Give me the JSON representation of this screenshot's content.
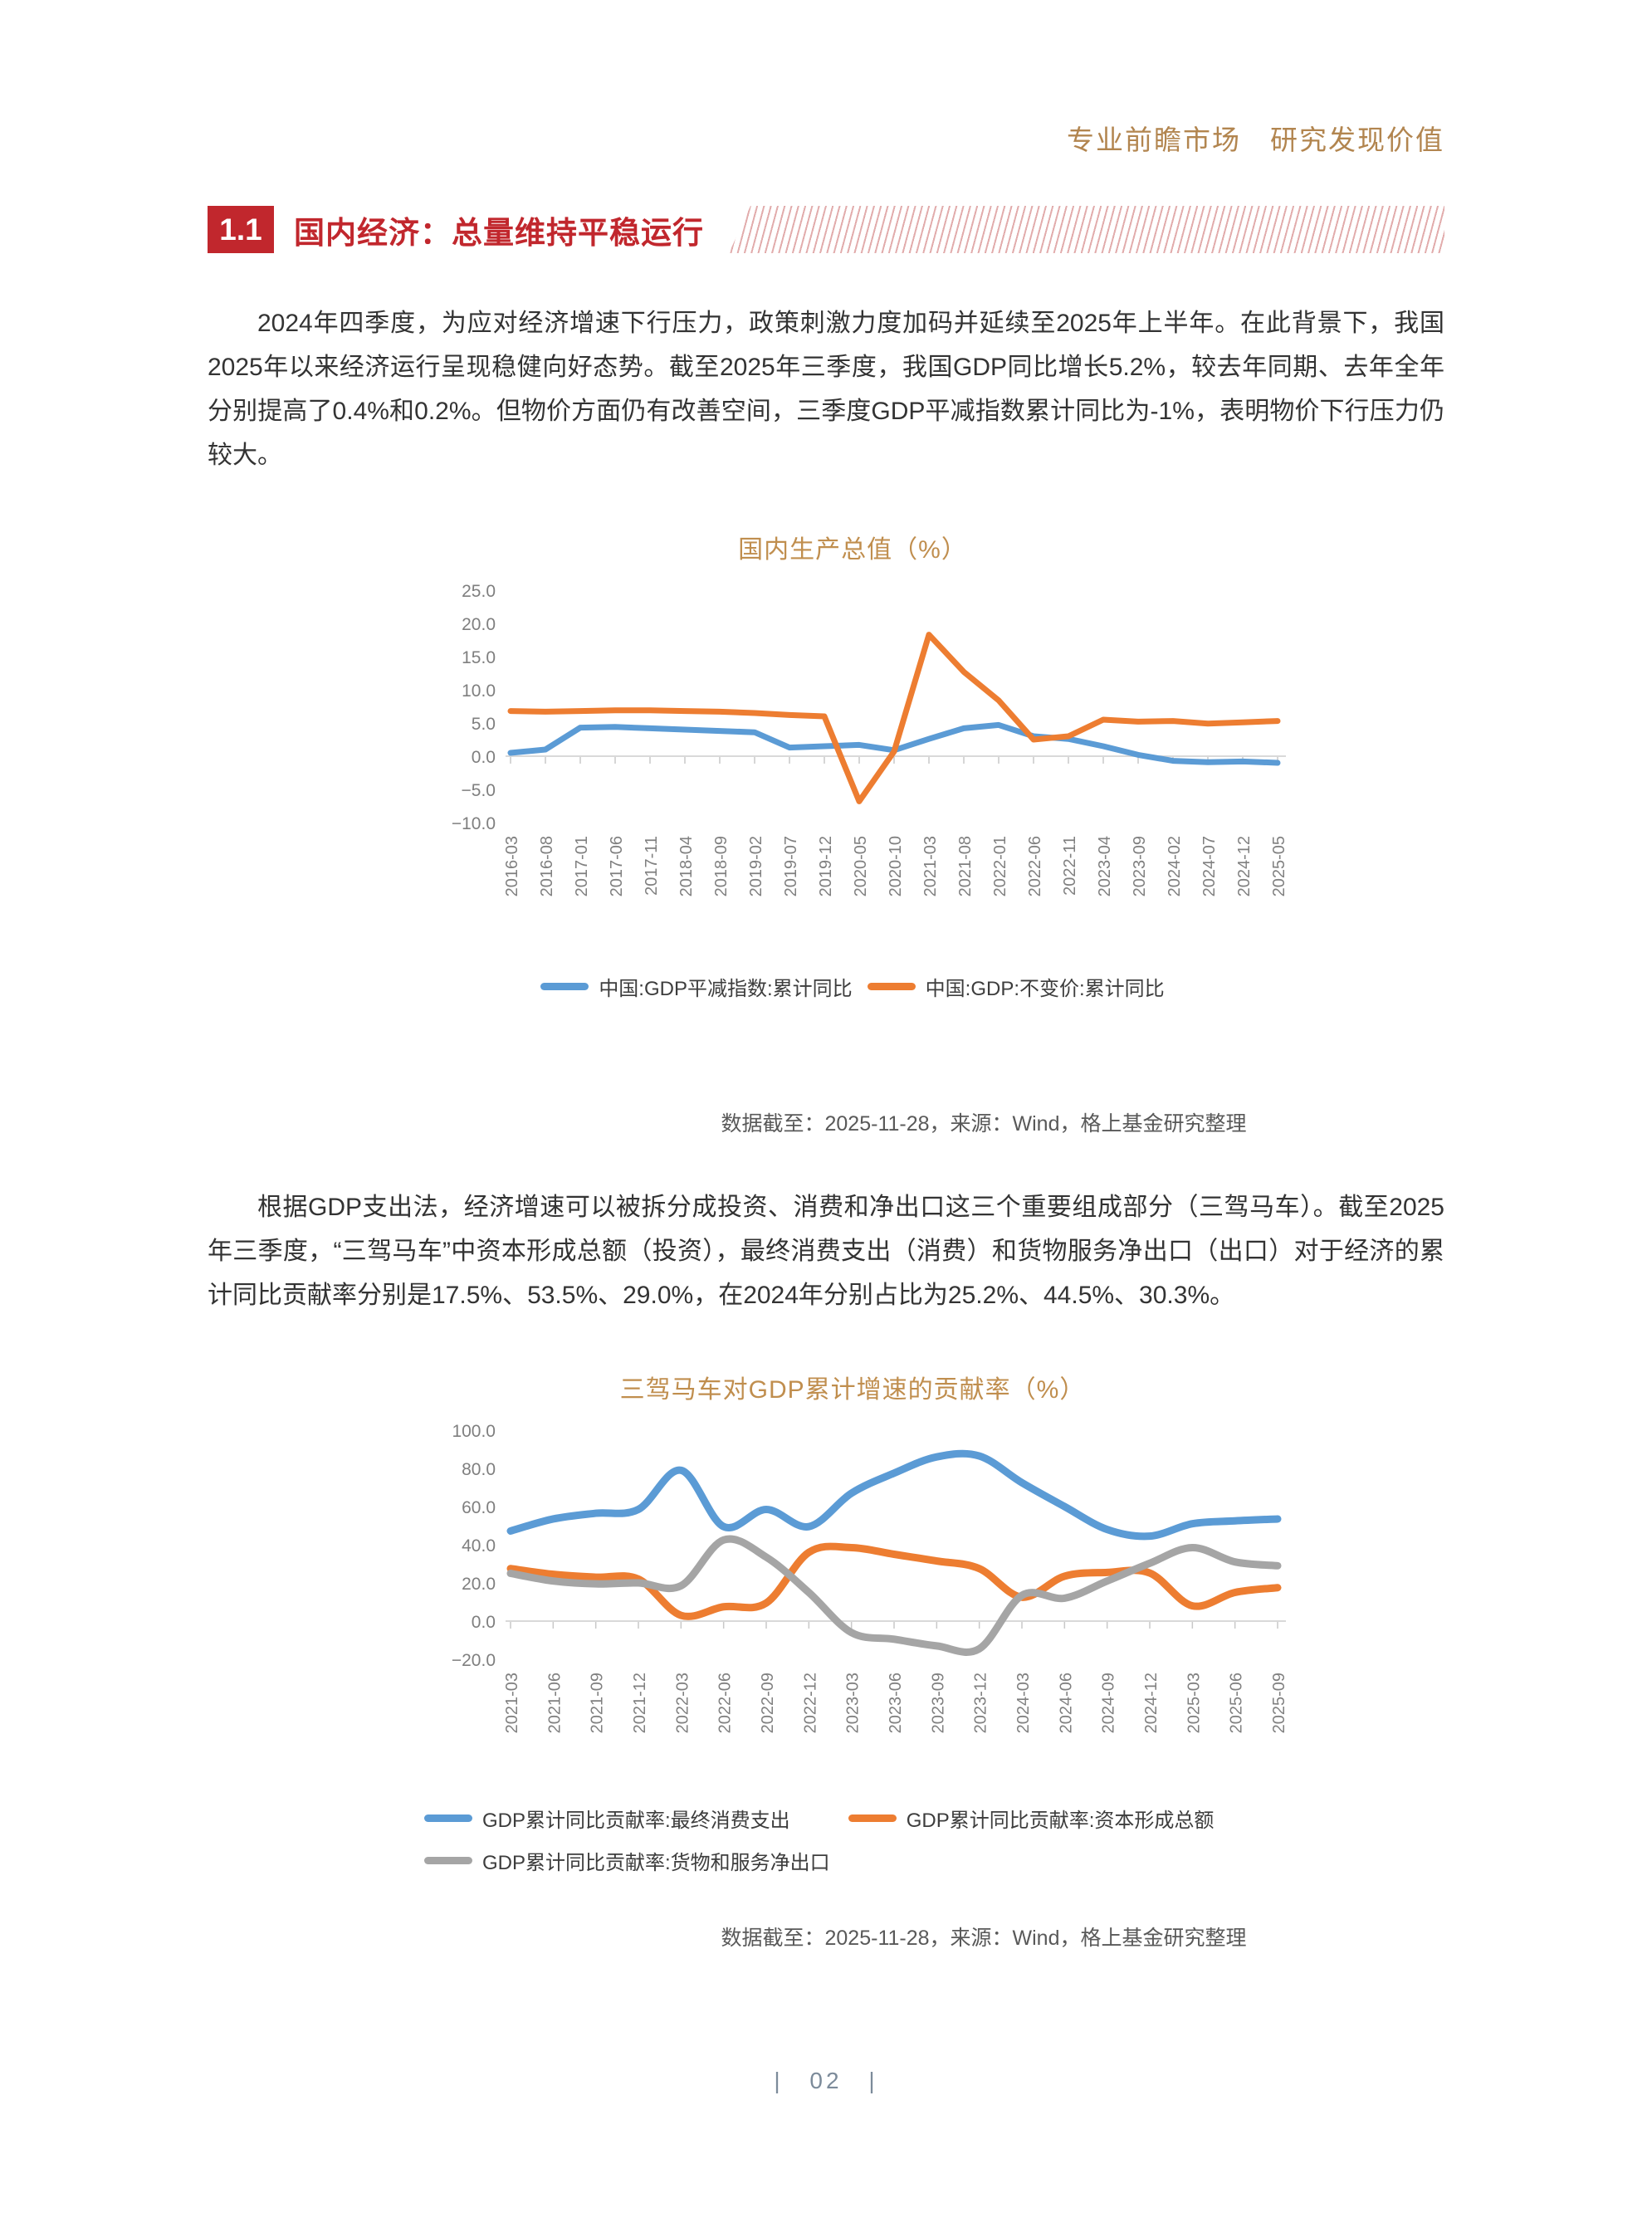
{
  "header": {
    "slogan": "专业前瞻市场　研究发现价值"
  },
  "section": {
    "number": "1.1",
    "title": "国内经济：总量维持平稳运行"
  },
  "paragraphs": {
    "p1": "2024年四季度，为应对经济增速下行压力，政策刺激力度加码并延续至2025年上半年。在此背景下，我国2025年以来经济运行呈现稳健向好态势。截至2025年三季度，我国GDP同比增长5.2%，较去年同期、去年全年分别提高了0.4%和0.2%。但物价方面仍有改善空间，三季度GDP平减指数累计同比为-1%，表明物价下行压力仍较大。",
    "p2": "根据GDP支出法，经济增速可以被拆分成投资、消费和净出口这三个重要组成部分（三驾马车）。截至2025年三季度，“三驾马车”中资本形成总额（投资），最终消费支出（消费）和货物服务净出口（出口）对于经济的累计同比贡献率分别是17.5%、53.5%、29.0%，在2024年分别占比为25.2%、44.5%、30.3%。"
  },
  "chart_data": [
    {
      "type": "line",
      "title": "国内生产总值（%）",
      "smooth": false,
      "ylim": [
        -10,
        25
      ],
      "yticks": [
        25,
        20,
        15,
        10,
        5,
        0,
        -5,
        -10
      ],
      "grid": "zero-line-only",
      "legend_position": "bottom",
      "x": [
        "2016-03",
        "2016-08",
        "2017-01",
        "2017-06",
        "2017-11",
        "2018-04",
        "2018-09",
        "2019-02",
        "2019-07",
        "2019-12",
        "2020-05",
        "2020-10",
        "2021-03",
        "2021-08",
        "2022-01",
        "2022-06",
        "2022-11",
        "2023-04",
        "2023-09",
        "2024-02",
        "2024-07",
        "2024-12",
        "2025-05"
      ],
      "series": [
        {
          "name": "中国:GDP平减指数:累计同比",
          "color": "#5B9BD5",
          "values": [
            0.5,
            1.0,
            4.3,
            4.4,
            4.2,
            4.0,
            3.8,
            3.6,
            1.3,
            1.5,
            1.7,
            0.9,
            2.6,
            4.2,
            4.7,
            3.0,
            2.6,
            1.5,
            0.2,
            -0.7,
            -0.9,
            -0.8,
            -1.0
          ]
        },
        {
          "name": "中国:GDP:不变价:累计同比",
          "color": "#ED7D31",
          "values": [
            6.8,
            6.7,
            6.8,
            6.9,
            6.9,
            6.8,
            6.7,
            6.5,
            6.2,
            6.0,
            -6.8,
            0.7,
            18.3,
            12.7,
            8.4,
            2.5,
            3.0,
            5.5,
            5.2,
            5.3,
            4.9,
            5.1,
            5.3
          ]
        }
      ]
    },
    {
      "type": "line",
      "title": "三驾马车对GDP累计增速的贡献率（%）",
      "smooth": true,
      "ylim": [
        -20,
        100
      ],
      "yticks": [
        100,
        80,
        60,
        40,
        20,
        0,
        -20
      ],
      "grid": "zero-line-only",
      "legend_position": "bottom",
      "x": [
        "2021-03",
        "2021-06",
        "2021-09",
        "2021-12",
        "2022-03",
        "2022-06",
        "2022-09",
        "2022-12",
        "2023-03",
        "2023-06",
        "2023-09",
        "2023-12",
        "2024-03",
        "2024-06",
        "2024-09",
        "2024-12",
        "2025-03",
        "2025-06",
        "2025-09"
      ],
      "series": [
        {
          "name": "GDP累计同比贡献率:最终消费支出",
          "color": "#5B9BD5",
          "values": [
            47.2,
            53.5,
            56.5,
            58.5,
            79.0,
            49.5,
            58.5,
            49.5,
            67.0,
            77.5,
            86.0,
            86.5,
            72.5,
            60.0,
            48.0,
            44.5,
            51.0,
            52.5,
            53.5
          ]
        },
        {
          "name": "GDP累计同比贡献率:资本形成总额",
          "color": "#ED7D31",
          "values": [
            27.5,
            24.5,
            23.0,
            22.0,
            3.0,
            7.5,
            9.5,
            36.0,
            38.5,
            35.0,
            31.5,
            27.5,
            12.5,
            23.5,
            25.5,
            25.2,
            8.0,
            15.0,
            17.5
          ]
        },
        {
          "name": "GDP累计同比贡献率:货物和服务净出口",
          "color": "#A5A5A5",
          "values": [
            25.0,
            21.0,
            19.5,
            20.0,
            18.5,
            42.5,
            33.5,
            15.0,
            -6.0,
            -9.5,
            -13.0,
            -14.5,
            13.5,
            12.0,
            21.0,
            30.3,
            38.5,
            31.0,
            29.0
          ]
        }
      ]
    }
  ],
  "captions": {
    "chart1": "数据截至：2025-11-28，来源：Wind，格上基金研究整理",
    "chart2": "数据截至：2025-11-28，来源：Wind，格上基金研究整理"
  },
  "footer": {
    "page_number": "| 02 |"
  },
  "colors": {
    "accent_red": "#C1272D",
    "brand_gold": "#B2854F",
    "chart_title_gold": "#C08E4E",
    "series_blue": "#5B9BD5",
    "series_orange": "#ED7D31",
    "series_gray": "#A5A5A5"
  }
}
